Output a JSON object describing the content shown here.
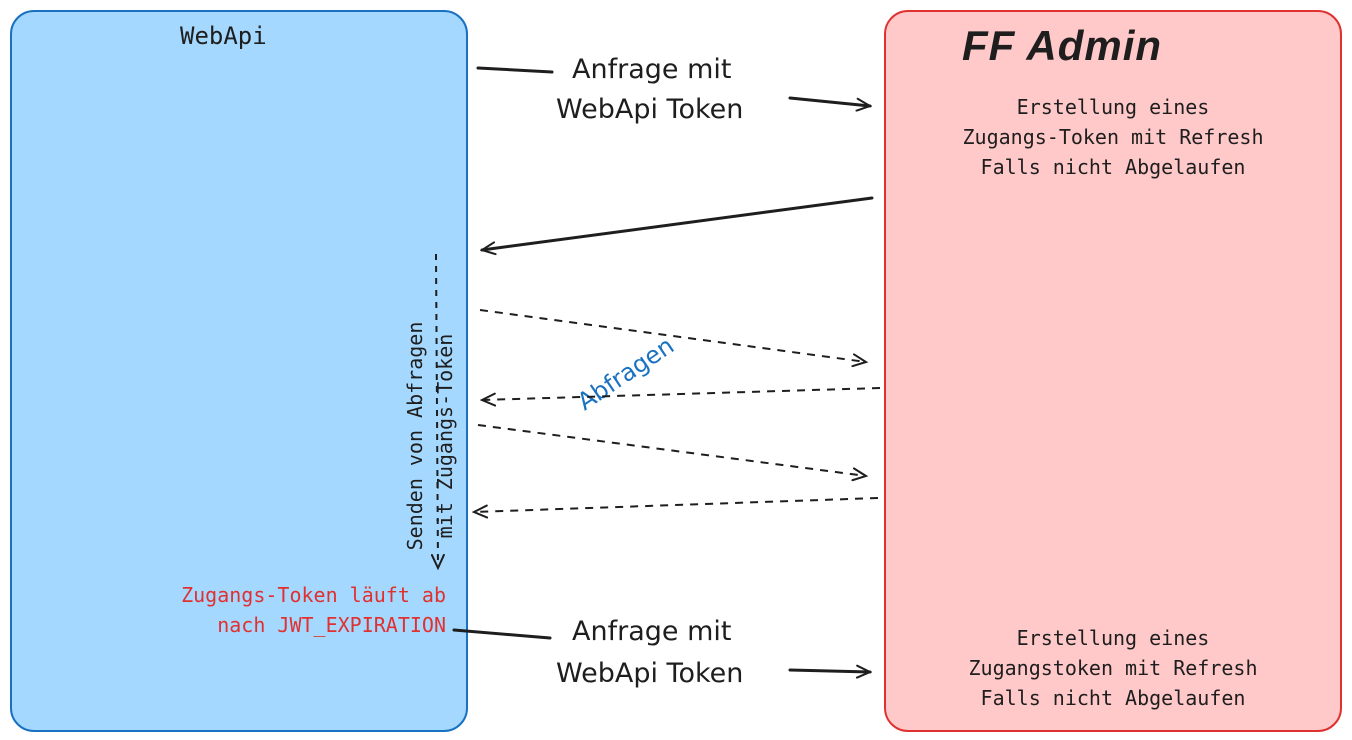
{
  "webapi": {
    "title": "WebApi",
    "send_label_lines": [
      "Senden von Abfragen",
      "mit Zugangs-Token"
    ],
    "expiry_lines": [
      "Zugangs-Token läuft ab",
      "nach JWT_EXPIRATION"
    ]
  },
  "admin": {
    "title": "FF Admin",
    "block1_lines": [
      "Erstellung eines",
      "Zugangs-Token mit Refresh",
      "Falls nicht Abgelaufen"
    ],
    "block2_lines": [
      "Erstellung eines",
      "Zugangstoken mit Refresh",
      "Falls nicht Abgelaufen"
    ]
  },
  "arrows": {
    "request1_lines": [
      "Anfrage mit",
      "WebApi Token"
    ],
    "request2_lines": [
      "Anfrage mit",
      "WebApi Token"
    ],
    "queries_label": "Abfragen"
  },
  "colors": {
    "webapi_fill": "#a5d8ff",
    "webapi_stroke": "#1971c2",
    "admin_fill": "#ffc9c9",
    "admin_stroke": "#e03131",
    "expiry_text": "#e03131",
    "queries_label": "#1971c2"
  }
}
